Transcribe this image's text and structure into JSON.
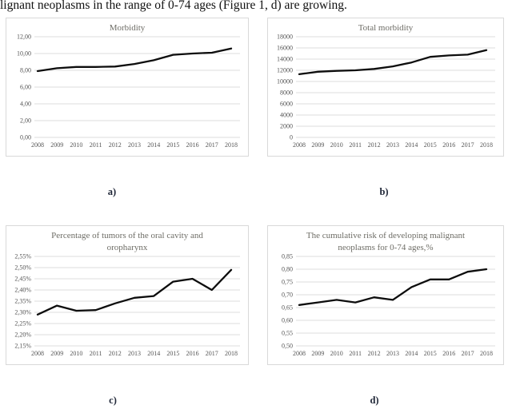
{
  "page": {
    "intro_text": "lignant neoplasms in the range of 0-74 ages (Figure 1, d) are growing."
  },
  "colors": {
    "box_border": "#d9d9d9",
    "gridline": "#dcdcdc",
    "series_line": "#0d0d0d",
    "title_text": "#6e6d66",
    "tick_text": "#555555",
    "panel_label_text": "#1f2637",
    "body_text": "#111111"
  },
  "chart_data": [
    {
      "id": "morbidity",
      "type": "line",
      "panel_label": "a)",
      "title": "Morbidity",
      "xlabel": "",
      "ylabel": "",
      "legend": "none",
      "grid": "horizontal",
      "categories": [
        "2008",
        "2009",
        "2010",
        "2011",
        "2012",
        "2013",
        "2014",
        "2015",
        "2016",
        "2017",
        "2018"
      ],
      "values": [
        7.9,
        8.25,
        8.4,
        8.4,
        8.45,
        8.75,
        9.2,
        9.85,
        10.0,
        10.1,
        10.6
      ],
      "ylim": [
        0,
        12
      ],
      "y_tick_labels": [
        "12,00",
        "10,00",
        "8,00",
        "6,00",
        "4,00",
        "2,00",
        "0,00"
      ]
    },
    {
      "id": "total-morbidity",
      "type": "line",
      "panel_label": "b)",
      "title": "Total morbidity",
      "xlabel": "",
      "ylabel": "",
      "legend": "none",
      "grid": "horizontal",
      "categories": [
        "2008",
        "2009",
        "2010",
        "2011",
        "2012",
        "2013",
        "2014",
        "2015",
        "2016",
        "2017",
        "2018"
      ],
      "values": [
        11300,
        11750,
        11900,
        12000,
        12250,
        12700,
        13400,
        14400,
        14650,
        14800,
        15600
      ],
      "ylim": [
        0,
        18000
      ],
      "y_tick_labels": [
        "18000",
        "16000",
        "14000",
        "12000",
        "10000",
        "8000",
        "6000",
        "4000",
        "2000",
        "0"
      ]
    },
    {
      "id": "oral-cavity-percentage",
      "type": "line",
      "panel_label": "c)",
      "title": "Percentage of tumors of the oral cavity and oropharynx",
      "xlabel": "",
      "ylabel": "",
      "legend": "none",
      "grid": "horizontal",
      "categories": [
        "2008",
        "2009",
        "2010",
        "2011",
        "2012",
        "2013",
        "2014",
        "2015",
        "2016",
        "2017",
        "2018"
      ],
      "values": [
        2.29,
        2.33,
        2.307,
        2.31,
        2.34,
        2.365,
        2.373,
        2.437,
        2.45,
        2.4,
        2.49
      ],
      "ylim": [
        2.15,
        2.55
      ],
      "y_tick_labels": [
        "2,55%",
        "2,50%",
        "2,45%",
        "2,40%",
        "2,35%",
        "2,30%",
        "2,25%",
        "2,20%",
        "2,15%"
      ]
    },
    {
      "id": "cumulative-risk",
      "type": "line",
      "panel_label": "d)",
      "title": "The cumulative risk of developing malignant neoplasms for 0-74 ages,%",
      "xlabel": "",
      "ylabel": "",
      "legend": "none",
      "grid": "horizontal",
      "categories": [
        "2008",
        "2009",
        "2010",
        "2011",
        "2012",
        "2013",
        "2014",
        "2015",
        "2016",
        "2017",
        "2018"
      ],
      "values": [
        0.66,
        0.67,
        0.68,
        0.67,
        0.69,
        0.68,
        0.73,
        0.76,
        0.76,
        0.79,
        0.8
      ],
      "ylim": [
        0.5,
        0.85
      ],
      "y_tick_labels": [
        "0,85",
        "0,80",
        "0,75",
        "0,70",
        "0,65",
        "0,60",
        "0,55",
        "0,50"
      ]
    }
  ]
}
